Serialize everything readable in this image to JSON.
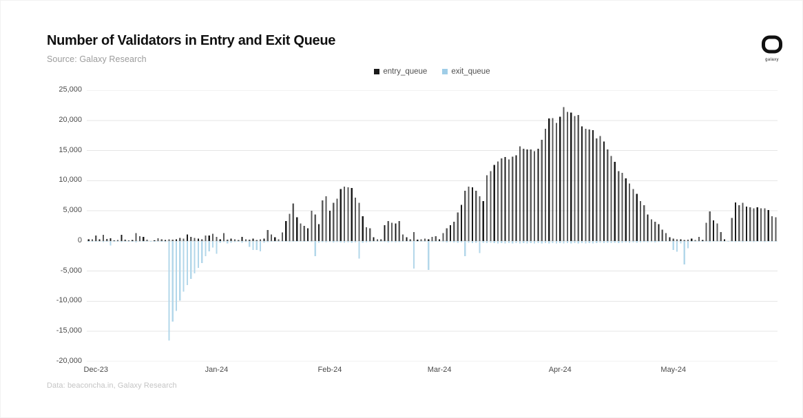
{
  "header": {
    "title": "Number of Validators in Entry and Exit Queue",
    "source": "Source: Galaxy Research"
  },
  "logo": {
    "label": "galaxy"
  },
  "legend": [
    {
      "label": "entry_queue",
      "color": "#1a1a1a"
    },
    {
      "label": "exit_queue",
      "color": "#9fcde7"
    }
  ],
  "footer": {
    "credit": "Data: beaconcha.in, Galaxy Research"
  },
  "chart_data": {
    "type": "bar",
    "title": "Number of Validators in Entry and Exit Queue",
    "xlabel": "",
    "ylabel": "",
    "ylim": [
      -20000,
      25000
    ],
    "grid": true,
    "legend_position": "top",
    "y_ticks": [
      25000,
      20000,
      15000,
      10000,
      5000,
      0,
      -5000,
      -10000,
      -15000,
      -20000
    ],
    "x_labels": [
      {
        "label": "Dec-23",
        "index": 2
      },
      {
        "label": "Jan-24",
        "index": 35
      },
      {
        "label": "Feb-24",
        "index": 66
      },
      {
        "label": "Mar-24",
        "index": 96
      },
      {
        "label": "Apr-24",
        "index": 129
      },
      {
        "label": "May-24",
        "index": 160
      }
    ],
    "series": [
      {
        "name": "entry_queue",
        "color": "#1a1a1a",
        "values": [
          250,
          300,
          900,
          250,
          1000,
          350,
          450,
          100,
          150,
          1000,
          200,
          100,
          150,
          1300,
          800,
          700,
          200,
          0,
          100,
          450,
          250,
          150,
          300,
          200,
          300,
          500,
          400,
          1050,
          700,
          500,
          400,
          300,
          900,
          900,
          1200,
          700,
          300,
          1300,
          200,
          400,
          300,
          150,
          700,
          300,
          200,
          400,
          150,
          300,
          400,
          1800,
          1100,
          600,
          250,
          1400,
          3300,
          4500,
          6200,
          3900,
          2900,
          2500,
          2100,
          5000,
          4400,
          2800,
          6700,
          7400,
          5000,
          6300,
          7000,
          8600,
          9000,
          8900,
          8800,
          7200,
          6300,
          4100,
          2300,
          2100,
          600,
          300,
          250,
          2600,
          3300,
          3000,
          2900,
          3300,
          1100,
          600,
          250,
          1500,
          200,
          250,
          400,
          300,
          700,
          800,
          300,
          1300,
          2100,
          2600,
          3200,
          4700,
          6000,
          8300,
          9000,
          8900,
          8300,
          7400,
          6600,
          10900,
          11600,
          12600,
          13200,
          13700,
          13900,
          13500,
          14000,
          14200,
          15700,
          15300,
          15200,
          15200,
          14900,
          15300,
          16800,
          18600,
          20300,
          20400,
          19600,
          20600,
          22200,
          21400,
          21300,
          20700,
          20900,
          19000,
          18600,
          18500,
          18400,
          17000,
          17400,
          16500,
          15200,
          14100,
          13100,
          11600,
          11300,
          10400,
          9500,
          8600,
          7800,
          6600,
          5900,
          4400,
          3600,
          3200,
          2800,
          1900,
          1300,
          600,
          400,
          300,
          300,
          150,
          200,
          400,
          150,
          700,
          150,
          3000,
          4900,
          3400,
          2900,
          1500,
          300,
          0,
          3800,
          6400,
          5900,
          6300,
          5700,
          5600,
          5400,
          5600,
          5400,
          5400,
          5100,
          4100,
          3900
        ]
      },
      {
        "name": "exit_queue",
        "color": "#b3d7ea",
        "values": [
          -150,
          -100,
          -150,
          -100,
          -200,
          -100,
          -750,
          -100,
          -150,
          -200,
          -100,
          -100,
          -150,
          -250,
          -150,
          -100,
          -100,
          -100,
          -150,
          -100,
          -150,
          -200,
          -16500,
          -13400,
          -11600,
          -9900,
          -8400,
          -7300,
          -6300,
          -5400,
          -4450,
          -3650,
          -2500,
          -1700,
          -1100,
          -2100,
          -300,
          -200,
          -400,
          -300,
          -200,
          -150,
          -300,
          -200,
          -1000,
          -1500,
          -1500,
          -1700,
          -300,
          -200,
          -150,
          -150,
          -100,
          -150,
          -150,
          -200,
          -150,
          -150,
          -150,
          -100,
          -150,
          -200,
          -2500,
          -300,
          -200,
          -250,
          -200,
          -250,
          -200,
          -250,
          -300,
          -250,
          -300,
          -250,
          -2900,
          -300,
          -250,
          -200,
          -150,
          -150,
          -100,
          -200,
          -250,
          -200,
          -250,
          -200,
          -150,
          -150,
          -100,
          -4600,
          -150,
          -150,
          -100,
          -4800,
          -200,
          -150,
          -150,
          -200,
          -250,
          -200,
          -250,
          -300,
          -250,
          -2500,
          -300,
          -350,
          -300,
          -2000,
          -300,
          -350,
          -300,
          -350,
          -400,
          -350,
          -400,
          -350,
          -400,
          -350,
          -400,
          -350,
          -400,
          -350,
          -400,
          -350,
          -400,
          -350,
          -400,
          -350,
          -400,
          -350,
          -400,
          -350,
          -400,
          -350,
          -400,
          -350,
          -400,
          -350,
          -400,
          -350,
          -300,
          -350,
          -300,
          -350,
          -300,
          -350,
          -300,
          -250,
          -300,
          -250,
          -300,
          -250,
          -200,
          -250,
          -200,
          -250,
          -200,
          -150,
          -150,
          -100,
          -1500,
          -1800,
          -400,
          -3900,
          -1200,
          -150,
          -100,
          -150,
          -100,
          -150,
          -200,
          -150,
          -150,
          -100,
          -150,
          -100,
          -150,
          -200,
          -150,
          -200,
          -150,
          -150,
          -200,
          -150,
          -150,
          -200,
          -150,
          -150,
          -150
        ]
      }
    ]
  }
}
